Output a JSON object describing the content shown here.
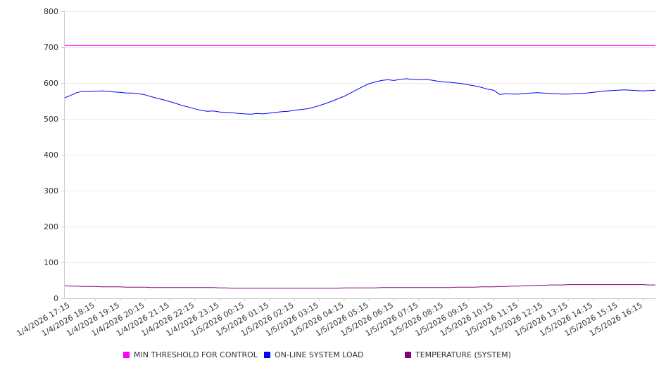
{
  "chart_data": {
    "type": "line",
    "ylim": [
      0,
      800
    ],
    "y_ticks": [
      0,
      100,
      200,
      300,
      400,
      500,
      600,
      700,
      800
    ],
    "grid": "horizontal",
    "legend_position": "bottom",
    "x_tick_labels": [
      "1/4/2026 17:15",
      "1/4/2026 18:15",
      "1/4/2026 19:15",
      "1/4/2026 20:15",
      "1/4/2026 21:15",
      "1/4/2026 22:15",
      "1/4/2026 23:15",
      "1/5/2026 00:15",
      "1/5/2026 01:15",
      "1/5/2026 02:15",
      "1/5/2026 03:15",
      "1/5/2026 04:15",
      "1/5/2026 05:15",
      "1/5/2026 06:15",
      "1/5/2026 07:15",
      "1/5/2026 08:15",
      "1/5/2026 09:15",
      "1/5/2026 10:15",
      "1/5/2026 11:15",
      "1/5/2026 12:15",
      "1/5/2026 13:15",
      "1/5/2026 14:15",
      "1/5/2026 15:15",
      "1/5/2026 16:15"
    ],
    "x": [
      "1/4/2026 17:00",
      "1/4/2026 17:15",
      "1/4/2026 17:30",
      "1/4/2026 17:45",
      "1/4/2026 18:00",
      "1/4/2026 18:15",
      "1/4/2026 18:30",
      "1/4/2026 18:45",
      "1/4/2026 19:00",
      "1/4/2026 19:15",
      "1/4/2026 19:30",
      "1/4/2026 19:45",
      "1/4/2026 20:00",
      "1/4/2026 20:15",
      "1/4/2026 20:30",
      "1/4/2026 20:45",
      "1/4/2026 21:00",
      "1/4/2026 21:15",
      "1/4/2026 21:30",
      "1/4/2026 21:45",
      "1/4/2026 22:00",
      "1/4/2026 22:15",
      "1/4/2026 22:30",
      "1/4/2026 22:45",
      "1/4/2026 23:00",
      "1/4/2026 23:15",
      "1/4/2026 23:30",
      "1/4/2026 23:45",
      "1/5/2026 00:00",
      "1/5/2026 00:15",
      "1/5/2026 00:30",
      "1/5/2026 00:45",
      "1/5/2026 01:00",
      "1/5/2026 01:15",
      "1/5/2026 01:30",
      "1/5/2026 01:45",
      "1/5/2026 02:00",
      "1/5/2026 02:15",
      "1/5/2026 02:30",
      "1/5/2026 02:45",
      "1/5/2026 03:00",
      "1/5/2026 03:15",
      "1/5/2026 03:30",
      "1/5/2026 03:45",
      "1/5/2026 04:00",
      "1/5/2026 04:15",
      "1/5/2026 04:30",
      "1/5/2026 04:45",
      "1/5/2026 05:00",
      "1/5/2026 05:15",
      "1/5/2026 05:30",
      "1/5/2026 05:45",
      "1/5/2026 06:00",
      "1/5/2026 06:15",
      "1/5/2026 06:30",
      "1/5/2026 06:45",
      "1/5/2026 07:00",
      "1/5/2026 07:15",
      "1/5/2026 07:30",
      "1/5/2026 07:45",
      "1/5/2026 08:00",
      "1/5/2026 08:15",
      "1/5/2026 08:30",
      "1/5/2026 08:45",
      "1/5/2026 09:00",
      "1/5/2026 09:15",
      "1/5/2026 09:30",
      "1/5/2026 09:45",
      "1/5/2026 10:00",
      "1/5/2026 10:15",
      "1/5/2026 10:30",
      "1/5/2026 10:45",
      "1/5/2026 11:00",
      "1/5/2026 11:15",
      "1/5/2026 11:30",
      "1/5/2026 11:45",
      "1/5/2026 12:00",
      "1/5/2026 12:15",
      "1/5/2026 12:30",
      "1/5/2026 12:45",
      "1/5/2026 13:00",
      "1/5/2026 13:15",
      "1/5/2026 13:30",
      "1/5/2026 13:45",
      "1/5/2026 14:00",
      "1/5/2026 14:15",
      "1/5/2026 14:30",
      "1/5/2026 14:45",
      "1/5/2026 15:00",
      "1/5/2026 15:15",
      "1/5/2026 15:30",
      "1/5/2026 15:45",
      "1/5/2026 16:00",
      "1/5/2026 16:15",
      "1/5/2026 16:30",
      "1/5/2026 16:45"
    ],
    "series": [
      {
        "name": "MIN THRESHOLD FOR CONTROL",
        "color": "#ff00ff",
        "values": [
          705,
          705,
          705,
          705,
          705,
          705,
          705,
          705,
          705,
          705,
          705,
          705,
          705,
          705,
          705,
          705,
          705,
          705,
          705,
          705,
          705,
          705,
          705,
          705,
          705,
          705,
          705,
          705,
          705,
          705,
          705,
          705,
          705,
          705,
          705,
          705,
          705,
          705,
          705,
          705,
          705,
          705,
          705,
          705,
          705,
          705,
          705,
          705,
          705,
          705,
          705,
          705,
          705,
          705,
          705,
          705,
          705,
          705,
          705,
          705,
          705,
          705,
          705,
          705,
          705,
          705,
          705,
          705,
          705,
          705,
          705,
          705,
          705,
          705,
          705,
          705,
          705,
          705,
          705,
          705,
          705,
          705,
          705,
          705,
          705,
          705,
          705,
          705,
          705,
          705,
          705,
          705,
          705,
          705,
          705,
          705
        ]
      },
      {
        "name": "ON-LINE SYSTEM LOAD",
        "color": "#0000ff",
        "values": [
          558,
          565,
          573,
          577,
          576,
          577,
          578,
          577,
          575,
          574,
          572,
          572,
          570,
          567,
          562,
          557,
          553,
          548,
          543,
          537,
          533,
          528,
          524,
          521,
          522,
          519,
          518,
          517,
          515,
          514,
          513,
          515,
          514,
          516,
          518,
          520,
          521,
          524,
          526,
          528,
          532,
          537,
          543,
          549,
          556,
          563,
          572,
          581,
          590,
          598,
          603,
          607,
          609,
          607,
          610,
          612,
          610,
          609,
          610,
          608,
          605,
          603,
          602,
          600,
          598,
          595,
          592,
          588,
          583,
          580,
          568,
          570,
          569,
          569,
          571,
          572,
          573,
          572,
          571,
          570,
          569,
          569,
          570,
          571,
          572,
          574,
          576,
          578,
          579,
          580,
          581,
          580,
          579,
          578,
          579,
          580
        ]
      },
      {
        "name": "TEMPERATURE (SYSTEM)",
        "color": "#800080",
        "values": [
          35,
          34,
          34,
          33,
          33,
          33,
          32,
          32,
          32,
          32,
          31,
          31,
          31,
          31,
          30,
          30,
          30,
          30,
          30,
          30,
          30,
          30,
          30,
          30,
          30,
          29,
          29,
          28,
          28,
          28,
          28,
          28,
          28,
          28,
          28,
          28,
          28,
          28,
          28,
          28,
          28,
          28,
          28,
          28,
          28,
          29,
          29,
          29,
          29,
          29,
          29,
          30,
          30,
          30,
          30,
          30,
          30,
          30,
          30,
          30,
          30,
          30,
          30,
          31,
          31,
          31,
          31,
          32,
          32,
          32,
          33,
          33,
          34,
          34,
          35,
          35,
          36,
          36,
          37,
          37,
          37,
          38,
          38,
          38,
          38,
          38,
          38,
          38,
          38,
          38,
          38,
          38,
          38,
          38,
          37,
          37
        ]
      }
    ]
  }
}
